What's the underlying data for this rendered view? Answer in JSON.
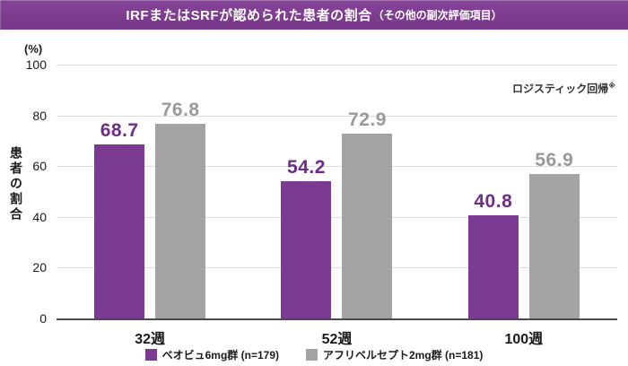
{
  "header": {
    "title": "IRFまたはSRFが認められた患者の割合",
    "subtitle": "（その他の副次評価項目）"
  },
  "note": {
    "text": "ロジスティック回帰",
    "superscript": "※"
  },
  "y_axis": {
    "unit": "(%)",
    "label": "患者の割合",
    "ticks": [
      100,
      80,
      60,
      40,
      20,
      0
    ]
  },
  "colors": {
    "header_bg": "#7d3c8e",
    "purple_bar": "#7b3b92",
    "purple_label": "#6f2d85",
    "gray_bar": "#a5a2a5",
    "gray_label": "#9b989b",
    "gridline": "#dcdcdc",
    "baseline": "#4a4a4a"
  },
  "chart_data": {
    "type": "bar",
    "categories": [
      "32週",
      "52週",
      "100週"
    ],
    "series": [
      {
        "name": "ベオビュ6mg群 (n=179)",
        "color": "#7b3b92",
        "label_color": "#6f2d85",
        "values": [
          68.7,
          54.2,
          40.8
        ]
      },
      {
        "name": "アフリベルセプト2mg群 (n=181)",
        "color": "#a5a2a5",
        "label_color": "#9b989b",
        "values": [
          76.8,
          72.9,
          56.9
        ]
      }
    ],
    "title": "IRFまたはSRFが認められた患者の割合（その他の副次評価項目）",
    "xlabel": "",
    "ylabel": "患者の割合",
    "ylim": [
      0,
      100
    ],
    "grid": true,
    "legend_position": "bottom"
  }
}
